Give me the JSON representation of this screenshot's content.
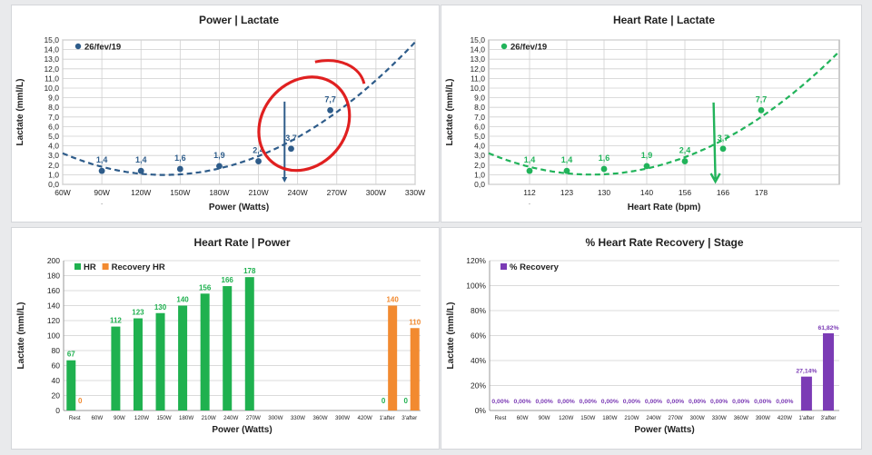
{
  "chart_data": [
    {
      "type": "scatter",
      "title": "Power | Lactate",
      "xlabel": "Power (Watts)",
      "ylabel": "Lactate (mml/L)",
      "x_ticks": [
        "60W",
        "90W",
        "120W",
        "150W",
        "180W",
        "210W",
        "240W",
        "270W",
        "300W",
        "330W"
      ],
      "xlim": [
        60,
        330
      ],
      "ylim": [
        0,
        15
      ],
      "y_ticks": [
        "0,0",
        "1,0",
        "2,0",
        "3,0",
        "4,0",
        "5,0",
        "6,0",
        "7,0",
        "8,0",
        "9,0",
        "10,0",
        "11,0",
        "12,0",
        "13,0",
        "14,0",
        "15,0"
      ],
      "legend": "26/fev/19",
      "legend_position": "top-left",
      "grid": true,
      "series_color": "#2e5c8a",
      "points": [
        {
          "x": 90,
          "y": 1.4,
          "label": "1,4"
        },
        {
          "x": 120,
          "y": 1.4,
          "label": "1,4"
        },
        {
          "x": 150,
          "y": 1.6,
          "label": "1,6"
        },
        {
          "x": 180,
          "y": 1.9,
          "label": "1,9"
        },
        {
          "x": 210,
          "y": 2.4,
          "label": "2,4"
        },
        {
          "x": 235,
          "y": 3.7,
          "label": "3,7"
        },
        {
          "x": 265,
          "y": 7.7,
          "label": "7,7"
        }
      ],
      "trend": "dashed polynomial",
      "marker_line_x": 230,
      "annotation": "red circle around 2,4 / 3,7 / 7,7 points",
      "annotation_color": "#e02020"
    },
    {
      "type": "scatter",
      "title": "Heart Rate | Lactate",
      "xlabel": "Heart Rate (bpm)",
      "ylabel": "Lactate (mml/L)",
      "x_ticks": [
        "112",
        "123",
        "130",
        "140",
        "156",
        "166",
        "178"
      ],
      "ylim": [
        0,
        15
      ],
      "y_ticks": [
        "0,0",
        "1,0",
        "2,0",
        "3,0",
        "4,0",
        "5,0",
        "6,0",
        "7,0",
        "8,0",
        "9,0",
        "10,0",
        "11,0",
        "12,0",
        "13,0",
        "14,0",
        "15,0"
      ],
      "legend": "26/fev/19",
      "legend_position": "top-left",
      "grid": true,
      "series_color": "#21b35a",
      "points": [
        {
          "x": 112,
          "y": 1.4,
          "label": "1,4"
        },
        {
          "x": 123,
          "y": 1.4,
          "label": "1,4"
        },
        {
          "x": 130,
          "y": 1.6,
          "label": "1,6"
        },
        {
          "x": 140,
          "y": 1.9,
          "label": "1,9"
        },
        {
          "x": 156,
          "y": 2.4,
          "label": "2,4"
        },
        {
          "x": 166,
          "y": 3.7,
          "label": "3,7"
        },
        {
          "x": 178,
          "y": 7.7,
          "label": "7,7"
        }
      ],
      "trend": "dashed polynomial",
      "arrow_x": 164,
      "arrow_color": "#21b35a"
    },
    {
      "type": "bar",
      "title": "Heart Rate | Power",
      "xlabel": "Power (Watts)",
      "ylabel": "Lactate (mml/L)",
      "ylim": [
        0,
        200
      ],
      "y_ticks": [
        "0",
        "20",
        "40",
        "60",
        "80",
        "100",
        "120",
        "140",
        "160",
        "180",
        "200"
      ],
      "categories": [
        "Rest",
        "60W",
        "90W",
        "120W",
        "150W",
        "180W",
        "210W",
        "240W",
        "270W",
        "300W",
        "330W",
        "360W",
        "390W",
        "420W",
        "1'after",
        "3'after"
      ],
      "legend_position": "top-left",
      "series": [
        {
          "name": "HR",
          "color": "#1fb14f",
          "values": [
            67,
            null,
            112,
            123,
            130,
            140,
            156,
            166,
            178,
            null,
            null,
            null,
            null,
            null,
            0,
            0
          ],
          "labels": [
            "67",
            "",
            "112",
            "123",
            "130",
            "140",
            "156",
            "166",
            "178",
            "",
            "",
            "",
            "",
            "",
            "0",
            "0"
          ]
        },
        {
          "name": "Recovery HR",
          "color": "#f28a30",
          "values": [
            0,
            null,
            null,
            null,
            null,
            null,
            null,
            null,
            null,
            null,
            null,
            null,
            null,
            null,
            140,
            110
          ],
          "labels": [
            "0",
            "",
            "",
            "",
            "",
            "",
            "",
            "",
            "",
            "",
            "",
            "",
            "",
            "",
            "140",
            "110"
          ]
        }
      ]
    },
    {
      "type": "bar",
      "title": "% Heart Rate Recovery | Stage",
      "xlabel": "Power (Watts)",
      "ylabel": "Lactate (mml/L)",
      "ylim": [
        0,
        120
      ],
      "y_ticks": [
        "0%",
        "20%",
        "40%",
        "60%",
        "80%",
        "100%",
        "120%"
      ],
      "categories": [
        "Rest",
        "60W",
        "90W",
        "120W",
        "150W",
        "180W",
        "210W",
        "240W",
        "270W",
        "300W",
        "330W",
        "360W",
        "390W",
        "420W",
        "1'after",
        "3'after"
      ],
      "legend_position": "top-left",
      "series": [
        {
          "name": "% Recovery",
          "color": "#7b3bb5",
          "values": [
            0,
            0,
            0,
            0,
            0,
            0,
            0,
            0,
            0,
            0,
            0,
            0,
            0,
            0,
            27.14,
            61.82
          ],
          "labels": [
            "0,00%",
            "0,00%",
            "0,00%",
            "0,00%",
            "0,00%",
            "0,00%",
            "0,00%",
            "0,00%",
            "0,00%",
            "0,00%",
            "0,00%",
            "0,00%",
            "0,00%",
            "0,00%",
            "27,14%",
            "61,82%"
          ]
        }
      ]
    }
  ]
}
